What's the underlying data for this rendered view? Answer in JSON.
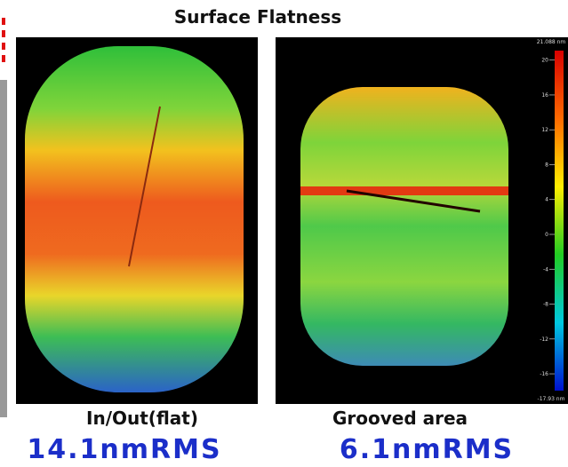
{
  "title": "Surface Flatness",
  "panels": [
    {
      "label": "In/Out(flat)",
      "rms": "14.1nmRMS"
    },
    {
      "label": "Grooved area",
      "rms": "6.1nmRMS"
    }
  ],
  "colorbar": {
    "max": {
      "value": 21.088,
      "label": "21.088 nm"
    },
    "min": {
      "value": -17.93,
      "label": "-17.93 nm"
    },
    "ticks": [
      20,
      16,
      12,
      8,
      4,
      0,
      -4,
      -8,
      -12,
      -16
    ]
  }
}
